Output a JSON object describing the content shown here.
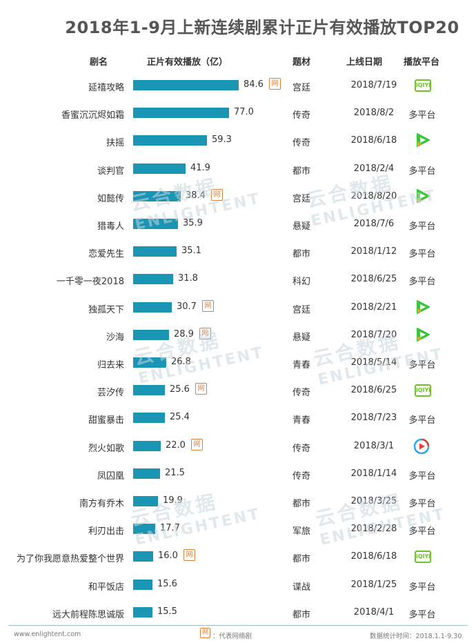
{
  "title": "2018年1-9月上新连续剧累计正片有效播放TOP20",
  "headers": {
    "name": "剧名",
    "plays": "正片有效播放（亿）",
    "genre": "题材",
    "date": "上线日期",
    "platform": "播放平台"
  },
  "net_badge_label": "网",
  "watermark": {
    "cn": "云合数据",
    "en": "ENLIGHTENT"
  },
  "footer": {
    "site": "www.enlightent.com",
    "legend": "：代表网络剧",
    "period": "数据统计时间：2018.1.1-9.30"
  },
  "colors": {
    "bar": "#1a95b3",
    "net_badge": "#d6803a",
    "iqiyi": "#6cc226",
    "tencent_green": "#3cc43b",
    "tencent_orange": "#ff9f1a"
  },
  "chart_data": {
    "type": "bar",
    "title": "2018年1-9月上新连续剧累计正片有效播放TOP20",
    "xlabel": "正片有效播放（亿）",
    "categories": [
      "延禧攻略",
      "香蜜沉沉烬如霜",
      "扶摇",
      "谈判官",
      "如懿传",
      "猎毒人",
      "恋爱先生",
      "一千零一夜2018",
      "独孤天下",
      "沙海",
      "归去来",
      "芸汐传",
      "甜蜜暴击",
      "烈火如歌",
      "凤囚凰",
      "南方有乔木",
      "利刃出击",
      "为了你我愿意热爱整个世界",
      "和平饭店",
      "远大前程陈思诚版"
    ],
    "values": [
      84.6,
      77.0,
      59.3,
      41.9,
      38.4,
      35.9,
      35.1,
      31.8,
      30.7,
      28.9,
      26.8,
      25.6,
      25.4,
      22.0,
      21.5,
      19.9,
      17.7,
      16.0,
      15.6,
      15.5
    ],
    "value_labels": [
      "84.6",
      "77.0",
      "59.3",
      "41.9",
      "38.4",
      "35.9",
      "35.1",
      "31.8",
      "30.7",
      "28.9",
      "26.8",
      "25.6",
      "25.4",
      "22.0",
      "21.5",
      "19.9",
      "17.7",
      "16.0",
      "15.6",
      "15.5"
    ],
    "xlim": [
      0,
      84.6
    ]
  },
  "rows": [
    {
      "name": "延禧攻略",
      "value": "84.6",
      "net": true,
      "genre": "宫廷",
      "date": "2018/7/19",
      "platform": "iqiyi",
      "platform_text": ""
    },
    {
      "name": "香蜜沉沉烬如霜",
      "value": "77.0",
      "net": false,
      "genre": "传奇",
      "date": "2018/8/2",
      "platform": "multi",
      "platform_text": "多平台"
    },
    {
      "name": "扶摇",
      "value": "59.3",
      "net": false,
      "genre": "传奇",
      "date": "2018/6/18",
      "platform": "tencent",
      "platform_text": ""
    },
    {
      "name": "谈判官",
      "value": "41.9",
      "net": false,
      "genre": "都市",
      "date": "2018/2/4",
      "platform": "multi",
      "platform_text": "多平台"
    },
    {
      "name": "如懿传",
      "value": "38.4",
      "net": true,
      "genre": "宫廷",
      "date": "2018/8/20",
      "platform": "tencent",
      "platform_text": ""
    },
    {
      "name": "猎毒人",
      "value": "35.9",
      "net": false,
      "genre": "悬疑",
      "date": "2018/7/6",
      "platform": "multi",
      "platform_text": "多平台"
    },
    {
      "name": "恋爱先生",
      "value": "35.1",
      "net": false,
      "genre": "都市",
      "date": "2018/1/12",
      "platform": "multi",
      "platform_text": "多平台"
    },
    {
      "name": "一千零一夜2018",
      "value": "31.8",
      "net": false,
      "genre": "科幻",
      "date": "2018/6/25",
      "platform": "multi",
      "platform_text": "多平台"
    },
    {
      "name": "独孤天下",
      "value": "30.7",
      "net": true,
      "genre": "宫廷",
      "date": "2018/2/21",
      "platform": "tencent",
      "platform_text": ""
    },
    {
      "name": "沙海",
      "value": "28.9",
      "net": true,
      "genre": "悬疑",
      "date": "2018/7/20",
      "platform": "tencent",
      "platform_text": ""
    },
    {
      "name": "归去来",
      "value": "26.8",
      "net": false,
      "genre": "青春",
      "date": "2018/5/14",
      "platform": "multi",
      "platform_text": "多平台"
    },
    {
      "name": "芸汐传",
      "value": "25.6",
      "net": true,
      "genre": "传奇",
      "date": "2018/6/25",
      "platform": "iqiyi",
      "platform_text": ""
    },
    {
      "name": "甜蜜暴击",
      "value": "25.4",
      "net": false,
      "genre": "青春",
      "date": "2018/7/23",
      "platform": "multi",
      "platform_text": "多平台"
    },
    {
      "name": "烈火如歌",
      "value": "22.0",
      "net": true,
      "genre": "传奇",
      "date": "2018/3/1",
      "platform": "youku",
      "platform_text": ""
    },
    {
      "name": "凤囚凰",
      "value": "21.5",
      "net": false,
      "genre": "传奇",
      "date": "2018/1/14",
      "platform": "multi",
      "platform_text": "多平台"
    },
    {
      "name": "南方有乔木",
      "value": "19.9",
      "net": false,
      "genre": "都市",
      "date": "2018/3/25",
      "platform": "multi",
      "platform_text": "多平台"
    },
    {
      "name": "利刃出击",
      "value": "17.7",
      "net": false,
      "genre": "军旅",
      "date": "2018/2/28",
      "platform": "multi",
      "platform_text": "多平台"
    },
    {
      "name": "为了你我愿意热爱整个世界",
      "value": "16.0",
      "net": true,
      "genre": "都市",
      "date": "2018/6/18",
      "platform": "iqiyi",
      "platform_text": ""
    },
    {
      "name": "和平饭店",
      "value": "15.6",
      "net": false,
      "genre": "谍战",
      "date": "2018/1/25",
      "platform": "multi",
      "platform_text": "多平台"
    },
    {
      "name": "远大前程陈思诚版",
      "value": "15.5",
      "net": false,
      "genre": "都市",
      "date": "2018/4/1",
      "platform": "multi",
      "platform_text": "多平台"
    }
  ],
  "icons": {
    "iqiyi_text": "iQIYI"
  }
}
